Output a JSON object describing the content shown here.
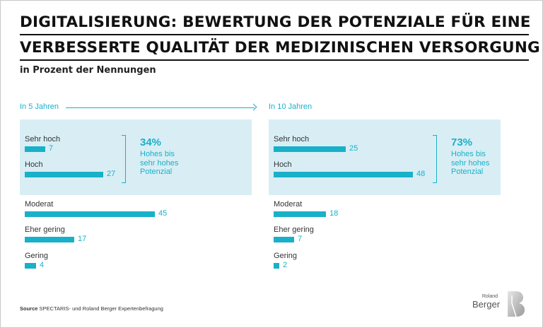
{
  "title_lines": [
    "DIGITALISIERUNG: BEWERTUNG DER POTENZIALE FÜR EINE",
    "VERBESSERTE QUALITÄT DER MEDIZINISCHEN VERSORGUNG"
  ],
  "subtitle": "in Prozent der Nennungen",
  "colors": {
    "accent": "#19b0c9",
    "panel": "#d8eef4"
  },
  "chart_data": [
    {
      "type": "bar",
      "orientation": "horizontal",
      "title": "In 5 Jahren",
      "categories": [
        "Sehr hoch",
        "Hoch",
        "Moderat",
        "Eher gering",
        "Gering"
      ],
      "values": [
        7,
        27,
        45,
        17,
        4
      ],
      "highlight": {
        "categories": [
          "Sehr hoch",
          "Hoch"
        ],
        "value": "34%",
        "label": [
          "Hohes bis",
          "sehr hohes",
          "Potenzial"
        ]
      }
    },
    {
      "type": "bar",
      "orientation": "horizontal",
      "title": "In 10 Jahren",
      "categories": [
        "Sehr hoch",
        "Hoch",
        "Moderat",
        "Eher gering",
        "Gering"
      ],
      "values": [
        25,
        48,
        18,
        7,
        2
      ],
      "highlight": {
        "categories": [
          "Sehr hoch",
          "Hoch"
        ],
        "value": "73%",
        "label": [
          "Hohes bis",
          "sehr hohes",
          "Potenzial"
        ]
      }
    }
  ],
  "source_label": "Source",
  "source_text": "SPECTARIS- und Roland Berger Expertenbefragung",
  "logo": {
    "top": "Roland",
    "bottom": "Berger",
    "mark": "B"
  }
}
